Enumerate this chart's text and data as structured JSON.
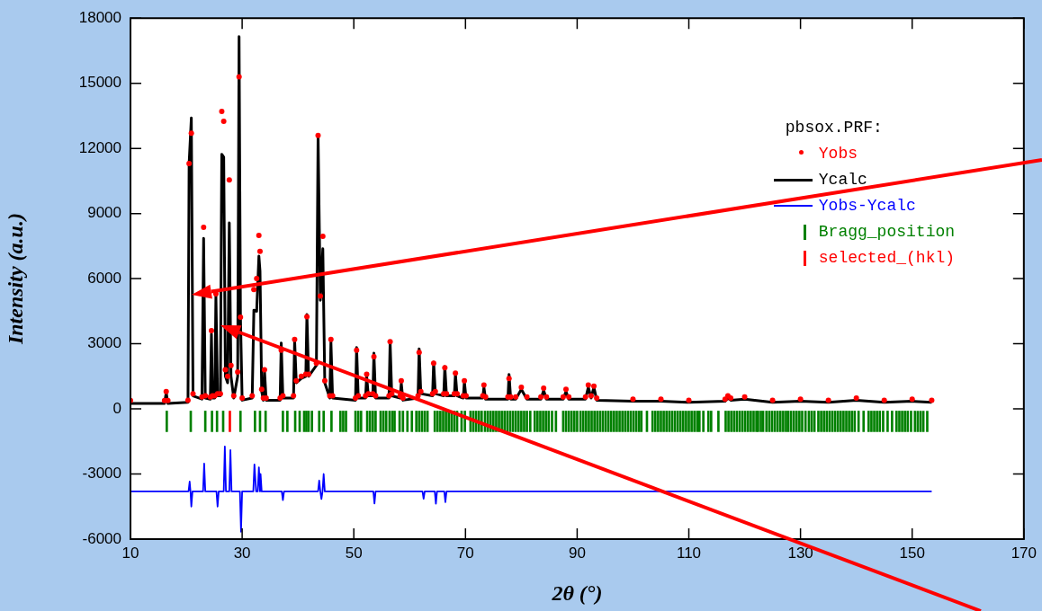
{
  "chart_data": {
    "type": "line",
    "xlabel": "2θ (°)",
    "ylabel": "Intensity (a.u.)",
    "legend_title": "pbsox.PRF:",
    "legend": "top right",
    "xlim": [
      10,
      170
    ],
    "xticks": [
      10,
      30,
      50,
      70,
      90,
      110,
      130,
      150,
      170
    ],
    "ylim": [
      -6000,
      18000
    ],
    "yticks": [
      -6000,
      -3000,
      0,
      3000,
      6000,
      9000,
      12000,
      15000,
      18000
    ],
    "series": [
      {
        "name": "Yobs",
        "type": "scatter",
        "marker": "circle",
        "color": "#ff0000",
        "x": [
          10,
          16.1,
          16.4,
          16.7,
          20.3,
          20.5,
          20.9,
          21.2,
          22.8,
          23.1,
          23.4,
          24.3,
          24.5,
          24.7,
          25.1,
          25.3,
          25.6,
          26.1,
          26.35,
          26.7,
          27.0,
          27.4,
          27.7,
          28.0,
          28.5,
          29.2,
          29.45,
          29.7,
          30.0,
          31.8,
          32.1,
          32.6,
          33.0,
          33.2,
          33.5,
          33.8,
          34.0,
          34.3,
          36.8,
          37.0,
          37.3,
          39.2,
          39.4,
          39.7,
          40.6,
          41.4,
          41.6,
          41.9,
          43.3,
          43.6,
          44.0,
          44.45,
          44.8,
          45.7,
          45.9,
          46.2,
          50.3,
          50.5,
          50.8,
          52.1,
          52.3,
          52.6,
          53.4,
          53.6,
          53.9,
          56.3,
          56.5,
          56.8,
          58.3,
          58.5,
          58.8,
          61.5,
          61.7,
          62.0,
          64.1,
          64.3,
          64.6,
          66.1,
          66.3,
          66.6,
          68.0,
          68.2,
          68.5,
          69.6,
          69.8,
          70.1,
          73.1,
          73.3,
          73.6,
          77.6,
          77.8,
          78.1,
          79,
          80,
          81,
          83.5,
          84,
          84.5,
          87.5,
          88,
          88.5,
          91.5,
          92,
          92.5,
          93,
          93.5,
          100,
          105,
          110,
          116.5,
          117,
          117.5,
          120,
          125,
          130,
          135,
          140,
          145,
          150,
          153.5
        ],
        "values": [
          380,
          380,
          800,
          380,
          400,
          11300,
          12700,
          700,
          550,
          8360,
          600,
          550,
          3600,
          600,
          600,
          5300,
          700,
          700,
          13700,
          13250,
          1800,
          1500,
          10550,
          2000,
          600,
          1700,
          15300,
          4220,
          500,
          600,
          5500,
          6000,
          7990,
          7260,
          900,
          500,
          1800,
          500,
          500,
          2700,
          600,
          600,
          3200,
          1300,
          1500,
          1600,
          4250,
          1600,
          2100,
          12600,
          5200,
          7950,
          1300,
          600,
          3200,
          600,
          500,
          2700,
          600,
          600,
          1600,
          700,
          700,
          2400,
          600,
          600,
          3100,
          700,
          600,
          1300,
          500,
          600,
          2600,
          800,
          700,
          2100,
          800,
          700,
          1900,
          700,
          700,
          1650,
          700,
          600,
          1300,
          600,
          600,
          1100,
          550,
          550,
          1400,
          550,
          550,
          1000,
          550,
          550,
          950,
          550,
          550,
          900,
          550,
          550,
          1100,
          600,
          1050,
          500,
          450,
          450,
          400,
          450,
          600,
          500,
          550,
          400,
          450,
          400,
          500,
          400,
          450,
          400
        ]
      },
      {
        "name": "Ycalc",
        "marker": "none",
        "line_style": "solid",
        "color": "#000000",
        "x": [
          10,
          16.1,
          16.4,
          16.7,
          20.3,
          20.5,
          20.9,
          21.2,
          22.8,
          23.1,
          23.4,
          24.3,
          24.5,
          24.7,
          25.1,
          25.3,
          25.6,
          26.1,
          26.35,
          26.7,
          27.0,
          27.4,
          27.7,
          28.0,
          28.5,
          29.2,
          29.45,
          29.7,
          30.0,
          31.8,
          32.1,
          32.6,
          33.0,
          33.2,
          33.5,
          33.8,
          34.0,
          34.3,
          36.8,
          37.0,
          37.3,
          39.2,
          39.4,
          39.7,
          40.6,
          41.4,
          41.6,
          41.9,
          43.3,
          43.6,
          44.0,
          44.45,
          44.8,
          45.7,
          45.9,
          46.2,
          50.3,
          50.5,
          50.8,
          52.1,
          52.3,
          52.6,
          53.4,
          53.6,
          53.9,
          56.3,
          56.5,
          56.8,
          58.3,
          58.5,
          58.8,
          61.5,
          61.7,
          62.0,
          64.1,
          64.3,
          64.6,
          66.1,
          66.3,
          66.6,
          68.0,
          68.2,
          68.5,
          69.6,
          69.8,
          70.1,
          73.1,
          73.3,
          73.6,
          77.6,
          77.8,
          78.1,
          79,
          80,
          81,
          83.5,
          84,
          84.5,
          87.5,
          88,
          88.5,
          91.5,
          92,
          92.5,
          93,
          93.5,
          100,
          105,
          110,
          116.5,
          117,
          117.5,
          120,
          125,
          130,
          135,
          140,
          145,
          150,
          153.5
        ],
        "values": [
          250,
          250,
          750,
          250,
          300,
          11300,
          13400,
          600,
          450,
          7860,
          500,
          450,
          3450,
          500,
          500,
          5250,
          600,
          600,
          11730,
          11600,
          1500,
          1200,
          8570,
          1500,
          500,
          1500,
          17150,
          4220,
          400,
          500,
          4550,
          4500,
          7040,
          6350,
          800,
          400,
          1790,
          400,
          400,
          3030,
          500,
          500,
          3180,
          1200,
          1400,
          1500,
          4350,
          1500,
          2000,
          12630,
          5000,
          7380,
          1200,
          500,
          3100,
          500,
          400,
          2830,
          500,
          500,
          1530,
          600,
          600,
          2570,
          500,
          500,
          3100,
          600,
          500,
          1190,
          400,
          500,
          2770,
          700,
          600,
          2150,
          700,
          600,
          1950,
          600,
          600,
          1600,
          600,
          500,
          1260,
          500,
          500,
          1000,
          450,
          450,
          1590,
          450,
          450,
          900,
          450,
          450,
          850,
          450,
          450,
          800,
          450,
          450,
          1000,
          500,
          1000,
          400,
          350,
          350,
          300,
          350,
          500,
          400,
          450,
          300,
          350,
          300,
          400,
          300,
          350,
          300
        ]
      },
      {
        "name": "Yobs-Ycalc",
        "marker": "none",
        "line_style": "solid",
        "color": "#0000ff",
        "x": [
          10,
          20.4,
          20.6,
          20.75,
          20.9,
          21.1,
          23.0,
          23.2,
          23.4,
          25.4,
          25.6,
          25.8,
          26.7,
          26.9,
          27.1,
          27.7,
          27.9,
          28.1,
          29.6,
          29.8,
          30.0,
          32.0,
          32.2,
          32.5,
          32.8,
          33.0,
          33.2,
          33.3,
          33.5,
          37.1,
          37.3,
          37.5,
          43.6,
          43.8,
          44.0,
          44.2,
          44.4,
          44.6,
          44.8,
          53.5,
          53.7,
          53.9,
          62.3,
          62.5,
          62.7,
          64.5,
          64.7,
          64.9,
          66.2,
          66.4,
          66.6,
          100,
          153.5
        ],
        "values": [
          -3800,
          -3800,
          -3350,
          -3800,
          -4500,
          -3800,
          -3800,
          -2520,
          -3800,
          -3800,
          -4500,
          -3800,
          -3800,
          -1730,
          -3800,
          -3800,
          -1900,
          -3800,
          -3800,
          -5660,
          -3800,
          -3800,
          -2560,
          -3800,
          -3800,
          -2690,
          -3800,
          -3000,
          -3800,
          -3800,
          -4200,
          -3800,
          -3800,
          -3300,
          -3800,
          -4150,
          -3800,
          -3000,
          -3800,
          -3800,
          -4360,
          -3800,
          -3800,
          -4140,
          -3800,
          -3800,
          -4370,
          -3800,
          -3800,
          -4300,
          -3800,
          -3800,
          -3800
        ]
      },
      {
        "name": "Bragg_position",
        "type": "bar",
        "color": "#008000",
        "x": [
          16.5,
          20.8,
          23.4,
          24.6,
          25.5,
          26.6,
          29.7,
          32.3,
          33.2,
          34.2,
          37.3,
          38.1,
          39.5,
          40.3,
          41.1,
          41.5,
          41.9,
          42.5,
          43.8,
          44.6,
          46.0,
          47.6,
          48.1,
          48.6,
          50.3,
          50.8,
          51.3,
          52.4,
          52.9,
          53.4,
          53.9,
          54.8,
          55.3,
          55.8,
          56.4,
          56.9,
          57.3,
          58.2,
          58.8,
          59.6,
          60.4,
          61.2,
          61.7,
          62.2,
          62.7,
          63.2,
          64.5,
          65.0,
          65.5,
          66.0,
          66.5,
          67.0,
          67.5,
          68.0,
          68.5,
          69.3,
          69.9,
          70.9,
          71.4,
          71.9,
          72.4,
          72.9,
          73.5,
          74.0,
          74.5,
          75.0,
          75.5,
          76.0,
          76.5,
          77.0,
          77.5,
          78.0,
          78.5,
          79.0,
          79.5,
          80.0,
          80.5,
          81.0,
          81.6,
          82.4,
          82.9,
          83.4,
          83.9,
          84.4,
          84.9,
          85.5,
          86.2,
          87.5,
          88.0,
          88.5,
          89.0,
          89.5,
          90.0,
          90.6,
          91.1,
          91.6,
          92.1,
          92.6,
          93.1,
          93.6,
          94.1,
          94.6,
          95.1,
          95.6,
          96.1,
          96.6,
          97.1,
          97.6,
          98.1,
          98.6,
          99.1,
          99.6,
          100.1,
          100.6,
          101.1,
          101.5,
          102.5,
          103.5,
          104.0,
          104.5,
          105.0,
          105.5,
          106.0,
          106.5,
          107.0,
          107.5,
          108.0,
          108.5,
          109.0,
          109.5,
          110.0,
          110.5,
          111.0,
          111.5,
          111.9,
          112.6,
          113.5,
          114.0,
          115.3,
          116.6,
          117.1,
          117.6,
          118.1,
          118.6,
          119.1,
          119.6,
          120.1,
          120.6,
          121.1,
          121.6,
          122.1,
          122.4,
          122.9,
          123.3,
          123.9,
          124.4,
          124.9,
          125.4,
          125.9,
          126.4,
          126.9,
          127.4,
          127.8,
          128.3,
          128.8,
          129.3,
          129.8,
          130.3,
          130.9,
          131.5,
          132.0,
          132.5,
          133.2,
          133.7,
          134.2,
          134.7,
          135.2,
          135.7,
          136.2,
          136.7,
          137.2,
          137.7,
          138.2,
          138.7,
          139.2,
          139.7,
          140.4,
          141.3,
          142.2,
          142.7,
          143.2,
          143.7,
          144.2,
          144.8,
          145.6,
          146.4,
          147.2,
          147.7,
          148.2,
          148.7,
          149.2,
          149.8,
          150.5,
          151.0,
          151.5,
          152.0,
          152.7
        ],
        "values": [
          950,
          950,
          950,
          950,
          950,
          950,
          950,
          950,
          950,
          950,
          950,
          950,
          950,
          950,
          950,
          950,
          950,
          950,
          950,
          950,
          950,
          950,
          950,
          950,
          950,
          950,
          950,
          950,
          950,
          950,
          950,
          950,
          950,
          950,
          950,
          950,
          950,
          950,
          950,
          950,
          950,
          950,
          950,
          950,
          950,
          950,
          950,
          950,
          950,
          950,
          950,
          950,
          950,
          950,
          950,
          950,
          950,
          950,
          950,
          950,
          950,
          950,
          950,
          950,
          950,
          950,
          950,
          950,
          950,
          950,
          950,
          950,
          950,
          950,
          950,
          950,
          950,
          950,
          950,
          950,
          950,
          950,
          950,
          950,
          950,
          950,
          950,
          950,
          950,
          950,
          950,
          950,
          950,
          950,
          950,
          950,
          950,
          950,
          950,
          950,
          950,
          950,
          950,
          950,
          950,
          950,
          950,
          950,
          950,
          950,
          950,
          950,
          950,
          950,
          950,
          950,
          950,
          950,
          950,
          950,
          950,
          950,
          950,
          950,
          950,
          950,
          950,
          950,
          950,
          950,
          950,
          950,
          950,
          950,
          950,
          950,
          950,
          950,
          950,
          950,
          950,
          950,
          950,
          950,
          950,
          950,
          950,
          950,
          950,
          950,
          950,
          950,
          950,
          950,
          950,
          950,
          950,
          950,
          950,
          950,
          950,
          950,
          950,
          950,
          950,
          950,
          950,
          950,
          950,
          950,
          950,
          950,
          950,
          950,
          950,
          950,
          950,
          950,
          950,
          950,
          950,
          950,
          950,
          950,
          950,
          950,
          950,
          950,
          950,
          950,
          950,
          950,
          950,
          950,
          950,
          950,
          950,
          950,
          950,
          950,
          950,
          950,
          950,
          950,
          950,
          950,
          950
        ],
        "base": [
          -1050,
          -1050,
          -1050,
          -1050,
          -1050,
          -1050,
          -1050,
          -1050,
          -1050,
          -1050,
          -1050,
          -1050,
          -1050,
          -1050,
          -1050,
          -1050,
          -1050,
          -1050,
          -1050,
          -1050,
          -1050,
          -1050,
          -1050,
          -1050,
          -1050,
          -1050,
          -1050,
          -1050,
          -1050,
          -1050,
          -1050,
          -1050,
          -1050,
          -1050,
          -1050,
          -1050,
          -1050,
          -1050,
          -1050,
          -1050,
          -1050,
          -1050,
          -1050,
          -1050,
          -1050,
          -1050,
          -1050,
          -1050,
          -1050,
          -1050,
          -1050,
          -1050,
          -1050,
          -1050,
          -1050,
          -1050,
          -1050,
          -1050,
          -1050,
          -1050,
          -1050,
          -1050,
          -1050,
          -1050,
          -1050,
          -1050,
          -1050,
          -1050,
          -1050,
          -1050,
          -1050,
          -1050,
          -1050,
          -1050,
          -1050,
          -1050,
          -1050,
          -1050,
          -1050,
          -1050,
          -1050,
          -1050,
          -1050,
          -1050,
          -1050,
          -1050,
          -1050,
          -1050,
          -1050,
          -1050,
          -1050,
          -1050,
          -1050,
          -1050,
          -1050,
          -1050,
          -1050,
          -1050,
          -1050,
          -1050,
          -1050,
          -1050,
          -1050,
          -1050,
          -1050,
          -1050,
          -1050,
          -1050,
          -1050,
          -1050,
          -1050,
          -1050,
          -1050,
          -1050,
          -1050,
          -1050,
          -1050,
          -1050,
          -1050,
          -1050,
          -1050,
          -1050,
          -1050,
          -1050,
          -1050,
          -1050,
          -1050,
          -1050,
          -1050,
          -1050,
          -1050,
          -1050,
          -1050,
          -1050,
          -1050,
          -1050,
          -1050,
          -1050,
          -1050,
          -1050,
          -1050,
          -1050,
          -1050,
          -1050,
          -1050,
          -1050,
          -1050,
          -1050,
          -1050,
          -1050,
          -1050,
          -1050,
          -1050,
          -1050,
          -1050,
          -1050,
          -1050,
          -1050,
          -1050,
          -1050,
          -1050,
          -1050,
          -1050,
          -1050,
          -1050,
          -1050,
          -1050,
          -1050,
          -1050,
          -1050,
          -1050,
          -1050,
          -1050,
          -1050,
          -1050,
          -1050,
          -1050,
          -1050,
          -1050,
          -1050,
          -1050,
          -1050,
          -1050,
          -1050,
          -1050,
          -1050,
          -1050,
          -1050,
          -1050,
          -1050,
          -1050,
          -1050,
          -1050,
          -1050,
          -1050,
          -1050,
          -1050,
          -1050,
          -1050,
          -1050,
          -1050,
          -1050,
          -1050,
          -1050,
          -1050,
          -1050,
          -1050
        ]
      },
      {
        "name": "selected_(hkl)",
        "type": "bar",
        "color": "#ff0000",
        "x": [
          27.8
        ],
        "values": [
          950
        ],
        "base": [
          -1050
        ]
      }
    ]
  }
}
